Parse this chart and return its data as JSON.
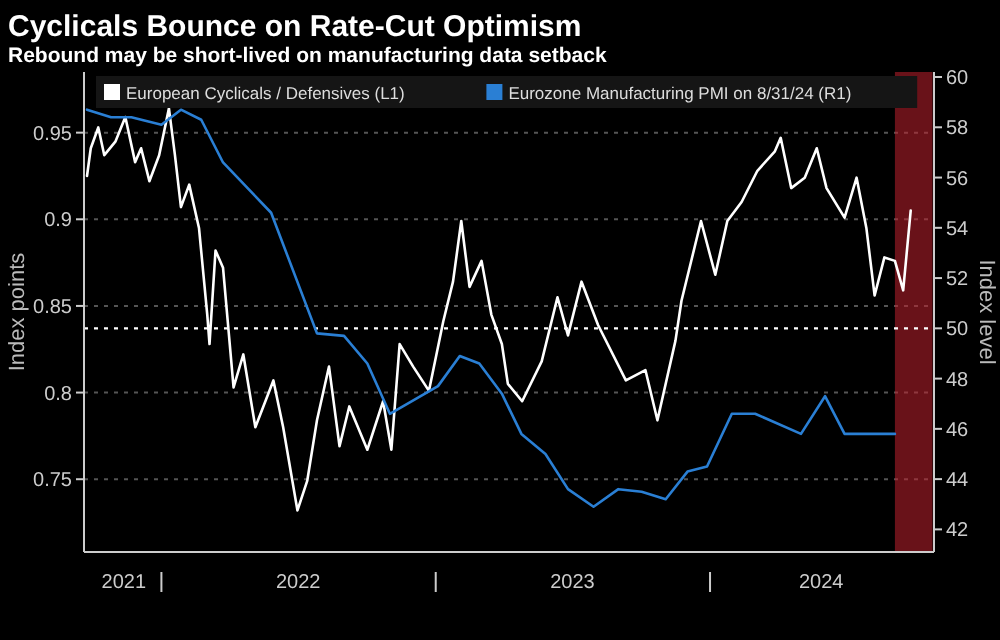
{
  "chart_data": {
    "type": "line",
    "title": "Cyclicals Bounce on Rate-Cut Optimism",
    "subtitle": "Rebound may be short-lived on manufacturing data setback",
    "ylabel": "Index points",
    "y2label": "Index level",
    "xlim": [
      "2021-09-20",
      "2024-10-25"
    ],
    "xticks": [
      {
        "value": "2021-11-12",
        "label": "2021"
      },
      {
        "value": "2022-01-01",
        "label": null
      },
      {
        "value": "2022-07-02",
        "label": "2022"
      },
      {
        "value": "2023-01-01",
        "label": null
      },
      {
        "value": "2023-07-02",
        "label": "2023"
      },
      {
        "value": "2024-01-01",
        "label": null
      },
      {
        "value": "2024-05-28",
        "label": "2024"
      }
    ],
    "ylim": [
      0.708,
      0.985
    ],
    "yticks": [
      0.75,
      0.8,
      0.85,
      0.9,
      0.95
    ],
    "y2lim": [
      41.1,
      60.2
    ],
    "y2ticks": [
      42,
      44,
      46,
      48,
      50,
      52,
      54,
      56,
      58,
      60
    ],
    "grid": "y",
    "legend": "top",
    "line_style": "solid",
    "ref_lines": [
      {
        "axis": "y2",
        "value": 50,
        "color": "#ffffff",
        "line_style": "dotted"
      }
    ],
    "bands": [
      {
        "axis": "x",
        "from": "2024-09-03",
        "to": "2024-10-23",
        "color": "#c0202e"
      }
    ],
    "series": [
      {
        "name": "European Cyclicals / Defensives (L1)",
        "color": "#ffffff",
        "x": [
          "2021-09-24",
          "2021-09-29",
          "2021-10-09",
          "2021-10-17",
          "2021-11-01",
          "2021-11-14",
          "2021-11-27",
          "2021-12-05",
          "2021-12-16",
          "2021-12-29",
          "2022-01-11",
          "2022-01-19",
          "2022-01-27",
          "2022-02-07",
          "2022-02-20",
          "2022-03-03",
          "2022-03-06",
          "2022-03-14",
          "2022-03-24",
          "2022-04-07",
          "2022-04-20",
          "2022-05-06",
          "2022-05-30",
          "2022-06-12",
          "2022-07-01",
          "2022-07-14",
          "2022-07-27",
          "2022-08-12",
          "2022-08-26",
          "2022-09-08",
          "2022-10-02",
          "2022-10-23",
          "2022-11-03",
          "2022-11-14",
          "2022-12-02",
          "2022-12-23",
          "2023-01-11",
          "2023-01-24",
          "2023-02-04",
          "2023-02-15",
          "2023-03-03",
          "2023-03-16",
          "2023-03-30",
          "2023-04-07",
          "2023-04-26",
          "2023-05-22",
          "2023-06-12",
          "2023-06-26",
          "2023-07-14",
          "2023-08-05",
          "2023-09-11",
          "2023-10-07",
          "2023-10-23",
          "2023-11-16",
          "2023-11-24",
          "2023-12-20",
          "2024-01-08",
          "2024-01-24",
          "2024-02-12",
          "2024-03-04",
          "2024-03-27",
          "2024-04-04",
          "2024-04-18",
          "2024-05-06",
          "2024-05-22",
          "2024-06-04",
          "2024-06-28",
          "2024-07-14",
          "2024-07-27",
          "2024-08-07",
          "2024-08-20",
          "2024-09-03",
          "2024-09-14",
          "2024-09-24"
        ],
        "values": [
          0.925,
          0.941,
          0.953,
          0.937,
          0.945,
          0.959,
          0.933,
          0.941,
          0.922,
          0.937,
          0.964,
          0.937,
          0.907,
          0.92,
          0.895,
          0.845,
          0.828,
          0.882,
          0.872,
          0.803,
          0.822,
          0.78,
          0.807,
          0.78,
          0.732,
          0.749,
          0.784,
          0.815,
          0.769,
          0.792,
          0.767,
          0.795,
          0.767,
          0.828,
          0.815,
          0.801,
          0.841,
          0.864,
          0.899,
          0.861,
          0.876,
          0.845,
          0.828,
          0.805,
          0.795,
          0.818,
          0.855,
          0.833,
          0.864,
          0.839,
          0.807,
          0.813,
          0.784,
          0.83,
          0.853,
          0.899,
          0.868,
          0.899,
          0.91,
          0.928,
          0.939,
          0.947,
          0.918,
          0.924,
          0.941,
          0.918,
          0.901,
          0.924,
          0.895,
          0.856,
          0.878,
          0.876,
          0.859,
          0.905
        ]
      },
      {
        "name": "Eurozone Manufacturing PMI on 8/31/24 (R1)",
        "color": "#2a7fd4",
        "axis": "y2",
        "x": [
          "2021-09-24",
          "2021-10-26",
          "2021-11-22",
          "2022-01-01",
          "2022-01-27",
          "2022-02-23",
          "2022-03-24",
          "2022-05-27",
          "2022-07-27",
          "2022-09-01",
          "2022-10-02",
          "2022-11-01",
          "2023-01-04",
          "2023-02-02",
          "2023-02-28",
          "2023-03-30",
          "2023-04-25",
          "2023-05-27",
          "2023-06-26",
          "2023-07-30",
          "2023-09-01",
          "2023-10-02",
          "2023-11-03",
          "2023-12-02",
          "2023-12-28",
          "2024-01-30",
          "2024-03-01",
          "2024-05-01",
          "2024-06-02",
          "2024-06-28",
          "2024-09-03"
        ],
        "values": [
          58.7,
          58.4,
          58.4,
          58.1,
          58.7,
          58.3,
          56.6,
          54.6,
          49.8,
          49.7,
          48.6,
          46.6,
          47.7,
          48.9,
          48.6,
          47.4,
          45.8,
          45.0,
          43.6,
          42.9,
          43.6,
          43.5,
          43.2,
          44.3,
          44.5,
          46.6,
          46.6,
          45.8,
          47.3,
          45.8,
          45.8
        ]
      }
    ]
  }
}
